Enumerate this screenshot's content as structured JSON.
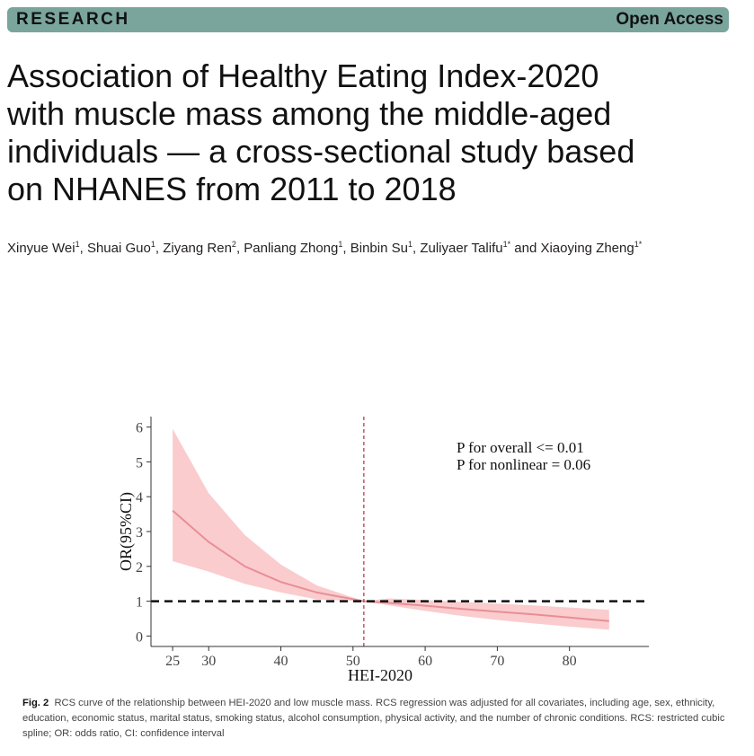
{
  "header": {
    "section_label": "RESEARCH",
    "access_label": "Open Access"
  },
  "article": {
    "title_lines": [
      "Association of Healthy Eating Index-2020",
      "with muscle mass among the middle-aged",
      "individuals — a cross-sectional study based",
      "on NHANES from 2011 to 2018"
    ],
    "authors": [
      {
        "name": "Xinyue Wei",
        "aff": "1"
      },
      {
        "name": "Shuai Guo",
        "aff": "1"
      },
      {
        "name": "Ziyang Ren",
        "aff": "2"
      },
      {
        "name": "Panliang Zhong",
        "aff": "1"
      },
      {
        "name": "Binbin Su",
        "aff": "1"
      },
      {
        "name": "Zuliyaer Talifu",
        "aff": "1*"
      },
      {
        "name": "Xiaoying Zheng",
        "aff": "1*"
      }
    ],
    "author_separator": ", ",
    "author_conjunction": " and "
  },
  "figure": {
    "caption_label": "Fig. 2",
    "caption_text": "RCS curve of the relationship between HEI-2020 and low muscle mass. RCS regression was adjusted for all covariates, including age, sex, ethnicity, education, economic status, marital status, smoking status, alcohol consumption, physical activity, and the number of chronic conditions. RCS: restricted cubic spline; OR: odds ratio, CI: confidence interval"
  },
  "colors": {
    "banner": "#7aa59c",
    "curve": "#e88e96",
    "band": "#f9c3c6",
    "vline": "#b5434b"
  },
  "chart_data": {
    "type": "line",
    "xlabel": "HEI-2020",
    "ylabel": "OR(95%CI)",
    "xlim": [
      22,
      91
    ],
    "ylim": [
      -0.3,
      6.3
    ],
    "xticks": [
      25,
      30,
      40,
      50,
      60,
      70,
      80
    ],
    "yticks": [
      0,
      1,
      2,
      3,
      4,
      5,
      6
    ],
    "annotations": [
      "P for overall <= 0.01",
      "P for nonlinear = 0.06"
    ],
    "reference_hline": 1,
    "reference_vline": 51.5,
    "series": [
      {
        "name": "OR",
        "x": [
          25,
          30,
          35,
          40,
          45,
          51.5,
          55,
          60,
          65,
          70,
          75,
          80,
          85.5
        ],
        "y": [
          3.6,
          2.7,
          2.0,
          1.55,
          1.25,
          1.0,
          0.95,
          0.87,
          0.78,
          0.7,
          0.62,
          0.53,
          0.43
        ],
        "lower": [
          2.15,
          1.85,
          1.5,
          1.25,
          1.05,
          1.0,
          0.88,
          0.72,
          0.58,
          0.46,
          0.36,
          0.27,
          0.18
        ],
        "upper": [
          5.95,
          4.1,
          2.9,
          2.05,
          1.45,
          1.0,
          1.08,
          1.03,
          0.98,
          0.93,
          0.88,
          0.82,
          0.75
        ]
      }
    ]
  }
}
